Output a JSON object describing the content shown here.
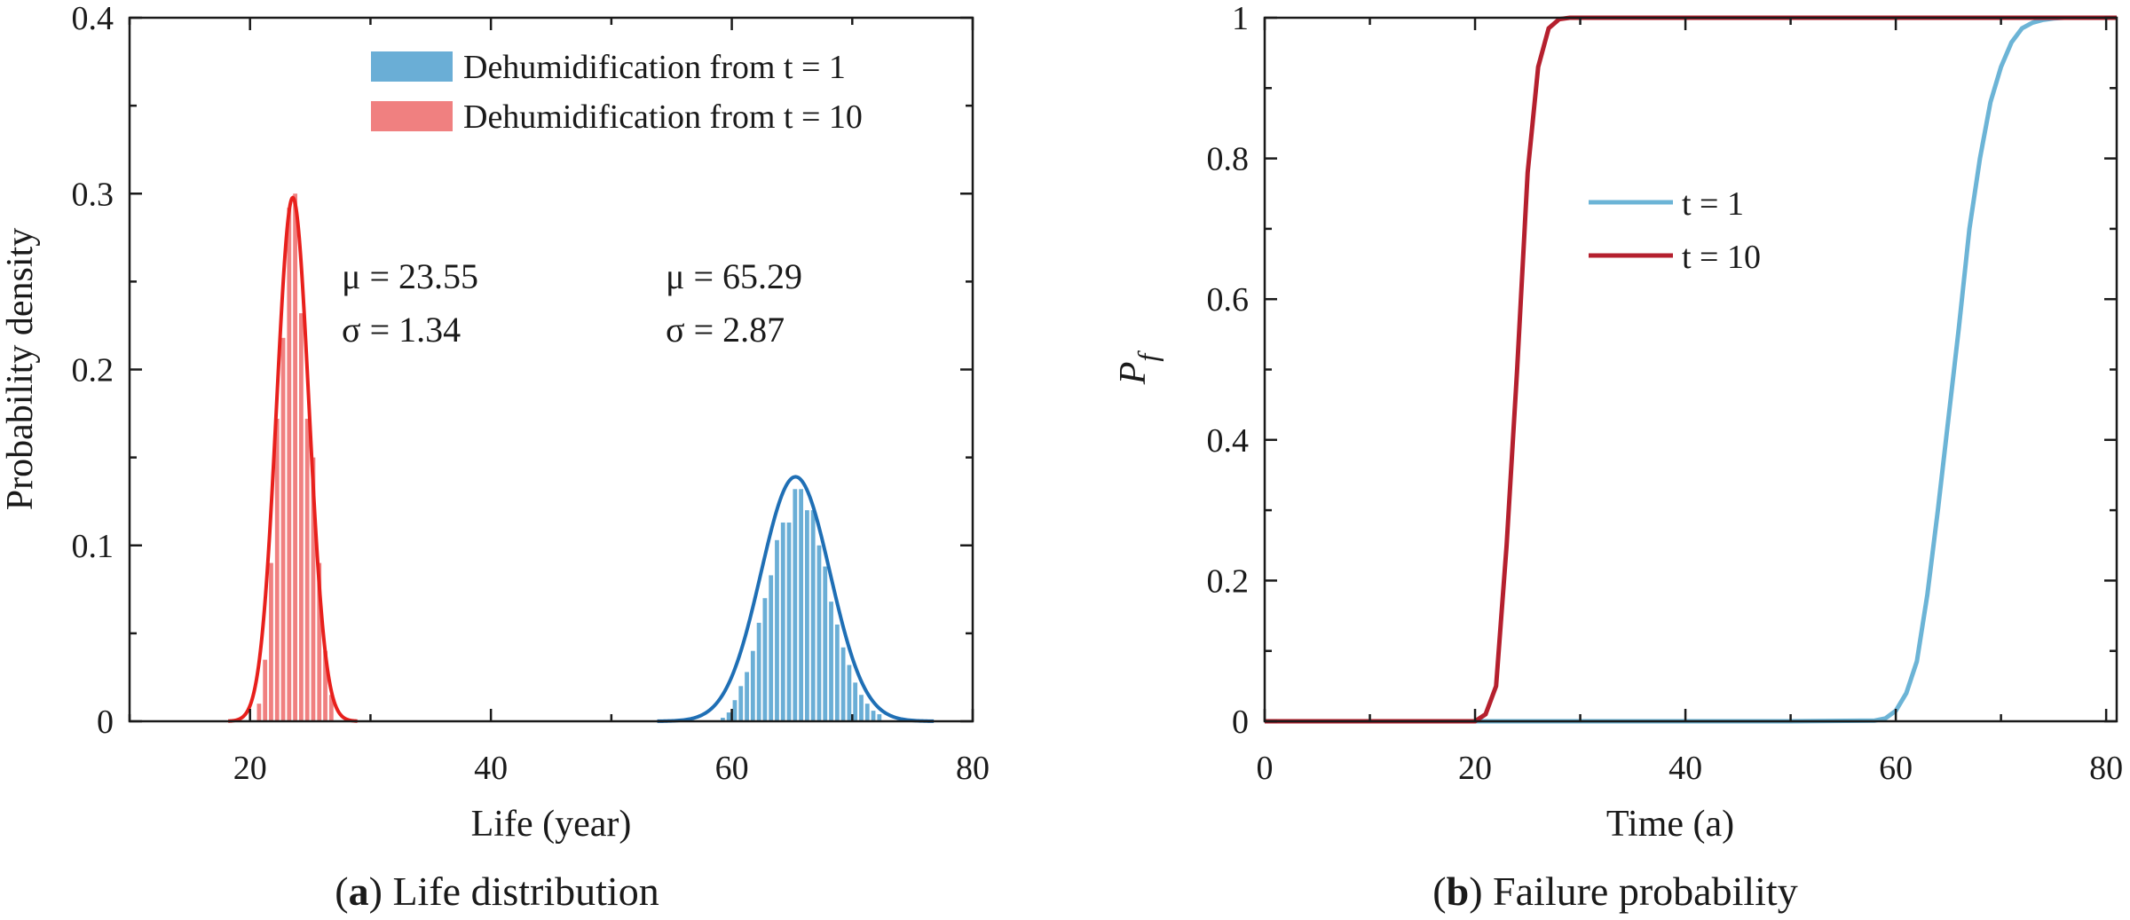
{
  "chart_data": [
    {
      "type": "histogram+density",
      "panel": "(a)",
      "caption_letter": "a",
      "caption_text": "Life distribution",
      "xlabel": "Life (year)",
      "ylabel": "Probability density",
      "xlim": [
        10,
        80
      ],
      "ylim": [
        0,
        0.4
      ],
      "x_ticks": [
        20,
        40,
        60,
        80
      ],
      "x_tick_labels": [
        "20",
        "40",
        "60",
        "80"
      ],
      "y_ticks": [
        0,
        0.1,
        0.2,
        0.3,
        0.4
      ],
      "y_tick_labels": [
        "0",
        "0.1",
        "0.2",
        "0.3",
        "0.4"
      ],
      "legend_position": "top-right",
      "series": [
        {
          "name": "Dehumidification from t = 1",
          "bar_color": "#6aaed6",
          "curve_color": "#1f6fb5",
          "mu": 65.29,
          "sigma": 2.87,
          "mu_text": "μ = 65.29",
          "sigma_text": "σ = 2.87",
          "bins": [
            {
              "x0": 59.0,
              "x1": 59.5,
              "y": 0.002
            },
            {
              "x0": 59.5,
              "x1": 60.0,
              "y": 0.005
            },
            {
              "x0": 60.0,
              "x1": 60.5,
              "y": 0.012
            },
            {
              "x0": 60.5,
              "x1": 61.0,
              "y": 0.02
            },
            {
              "x0": 61.0,
              "x1": 61.5,
              "y": 0.028
            },
            {
              "x0": 61.5,
              "x1": 62.0,
              "y": 0.04
            },
            {
              "x0": 62.0,
              "x1": 62.5,
              "y": 0.056
            },
            {
              "x0": 62.5,
              "x1": 63.0,
              "y": 0.07
            },
            {
              "x0": 63.0,
              "x1": 63.5,
              "y": 0.083
            },
            {
              "x0": 63.5,
              "x1": 64.0,
              "y": 0.103
            },
            {
              "x0": 64.0,
              "x1": 64.5,
              "y": 0.113
            },
            {
              "x0": 64.5,
              "x1": 65.0,
              "y": 0.113
            },
            {
              "x0": 65.0,
              "x1": 65.5,
              "y": 0.132
            },
            {
              "x0": 65.5,
              "x1": 66.0,
              "y": 0.132
            },
            {
              "x0": 66.0,
              "x1": 66.5,
              "y": 0.12
            },
            {
              "x0": 66.5,
              "x1": 67.0,
              "y": 0.12
            },
            {
              "x0": 67.0,
              "x1": 67.5,
              "y": 0.1
            },
            {
              "x0": 67.5,
              "x1": 68.0,
              "y": 0.088
            },
            {
              "x0": 68.0,
              "x1": 68.5,
              "y": 0.068
            },
            {
              "x0": 68.5,
              "x1": 69.0,
              "y": 0.055
            },
            {
              "x0": 69.0,
              "x1": 69.5,
              "y": 0.042
            },
            {
              "x0": 69.5,
              "x1": 70.0,
              "y": 0.032
            },
            {
              "x0": 70.0,
              "x1": 70.5,
              "y": 0.022
            },
            {
              "x0": 70.5,
              "x1": 71.0,
              "y": 0.015
            },
            {
              "x0": 71.0,
              "x1": 71.5,
              "y": 0.01
            },
            {
              "x0": 71.5,
              "x1": 72.0,
              "y": 0.006
            },
            {
              "x0": 72.0,
              "x1": 72.5,
              "y": 0.004
            }
          ]
        },
        {
          "name": "Dehumidification from t = 10",
          "bar_color": "#f08080",
          "curve_color": "#e8201c",
          "mu": 23.55,
          "sigma": 1.34,
          "mu_text": "μ = 23.55",
          "sigma_text": "σ = 1.34",
          "bins": [
            {
              "x0": 20.5,
              "x1": 21.0,
              "y": 0.01
            },
            {
              "x0": 21.0,
              "x1": 21.5,
              "y": 0.035
            },
            {
              "x0": 21.5,
              "x1": 22.0,
              "y": 0.09
            },
            {
              "x0": 22.0,
              "x1": 22.5,
              "y": 0.172
            },
            {
              "x0": 22.5,
              "x1": 23.0,
              "y": 0.218
            },
            {
              "x0": 23.0,
              "x1": 23.5,
              "y": 0.292
            },
            {
              "x0": 23.5,
              "x1": 24.0,
              "y": 0.3
            },
            {
              "x0": 24.0,
              "x1": 24.5,
              "y": 0.232
            },
            {
              "x0": 24.5,
              "x1": 25.0,
              "y": 0.172
            },
            {
              "x0": 25.0,
              "x1": 25.5,
              "y": 0.15
            },
            {
              "x0": 25.5,
              "x1": 26.0,
              "y": 0.09
            },
            {
              "x0": 26.0,
              "x1": 26.5,
              "y": 0.04
            },
            {
              "x0": 26.5,
              "x1": 27.0,
              "y": 0.015
            }
          ]
        }
      ]
    },
    {
      "type": "line",
      "panel": "(b)",
      "caption_letter": "b",
      "caption_text": "Failure probability",
      "xlabel": "Time (a)",
      "ylabel": "P",
      "ylabel_sub": "f",
      "xlim": [
        0,
        81
      ],
      "ylim": [
        0,
        1
      ],
      "x_ticks": [
        0,
        20,
        40,
        60,
        80
      ],
      "x_tick_labels": [
        "0",
        "20",
        "40",
        "60",
        "80"
      ],
      "y_ticks": [
        0,
        0.2,
        0.4,
        0.6,
        0.8,
        1
      ],
      "y_tick_labels": [
        "0",
        "0.2",
        "0.4",
        "0.6",
        "0.8",
        "1"
      ],
      "legend_position": "center-left",
      "series": [
        {
          "name": "t = 1",
          "color": "#6cb4d6",
          "x": [
            0,
            10,
            20,
            30,
            40,
            50,
            58,
            59,
            60,
            61,
            62,
            63,
            64,
            65,
            66,
            67,
            68,
            69,
            70,
            71,
            72,
            73,
            74,
            75,
            76,
            78,
            81
          ],
          "y": [
            0,
            0,
            0,
            0,
            0,
            0,
            0.001,
            0.004,
            0.015,
            0.04,
            0.085,
            0.18,
            0.3,
            0.43,
            0.56,
            0.7,
            0.8,
            0.88,
            0.93,
            0.965,
            0.985,
            0.993,
            0.997,
            0.999,
            1,
            1,
            1
          ]
        },
        {
          "name": "t = 10",
          "color": "#b5202e",
          "x": [
            0,
            10,
            20,
            21,
            22,
            23,
            24,
            25,
            26,
            27,
            28,
            29,
            30,
            40,
            50,
            60,
            70,
            81
          ],
          "y": [
            0,
            0,
            0,
            0.01,
            0.05,
            0.25,
            0.5,
            0.78,
            0.93,
            0.985,
            0.998,
            1,
            1,
            1,
            1,
            1,
            1,
            1
          ]
        }
      ]
    }
  ]
}
